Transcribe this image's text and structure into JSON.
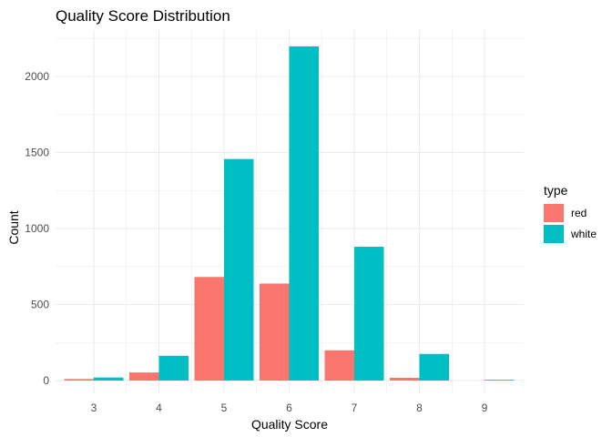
{
  "chart_data": {
    "type": "bar",
    "title": "Quality Score Distribution",
    "xlabel": "Quality Score",
    "ylabel": "Count",
    "categories": [
      "3",
      "4",
      "5",
      "6",
      "7",
      "8",
      "9"
    ],
    "series": [
      {
        "name": "red",
        "color": "#F8766D",
        "values": [
          10,
          53,
          681,
          638,
          199,
          18,
          0
        ]
      },
      {
        "name": "white",
        "color": "#00BFC4",
        "values": [
          20,
          163,
          1457,
          2198,
          880,
          175,
          5
        ]
      }
    ],
    "ylim": [
      0,
      2300
    ],
    "yticks": [
      0,
      500,
      1000,
      1500,
      2000
    ],
    "grid": true,
    "legend": {
      "title": "type",
      "position": "right"
    }
  }
}
